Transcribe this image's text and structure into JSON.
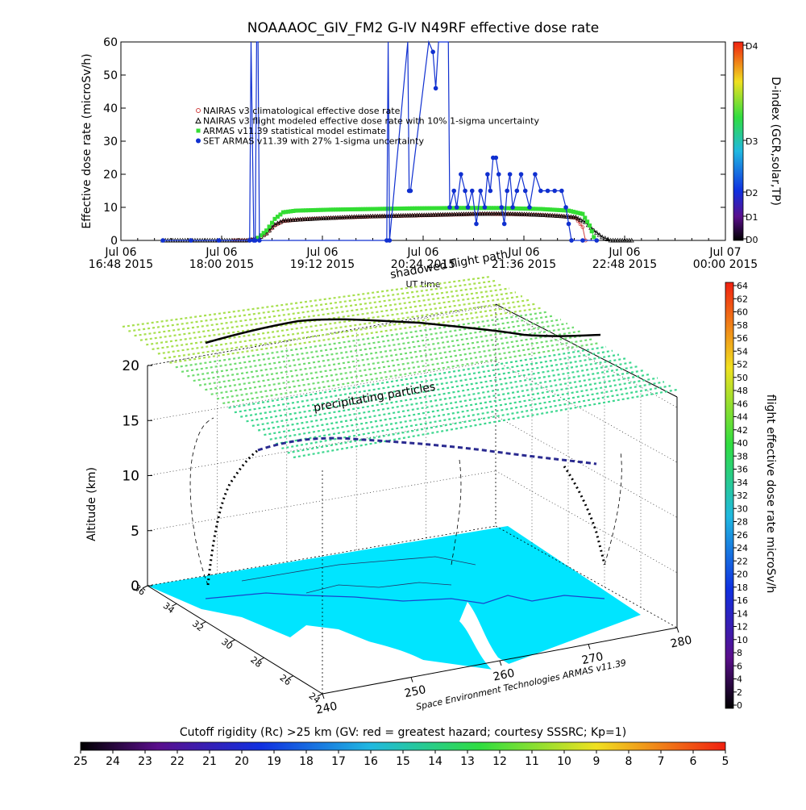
{
  "figure": {
    "title": "NOAAAOC_GIV_FM2 G-IV   N49RF  effective dose rate",
    "footer": "Space Environment Technologies ARMAS v11.39",
    "rc_caption": "Cutoff rigidity (Rc) >25 km (GV: red = greatest hazard; courtesy SSSRC; Kp=1)"
  },
  "chart_data": [
    {
      "type": "scatter",
      "name": "effective-dose-timeseries",
      "xlabel": "UT time",
      "ylabel": "Effective dose rate (microSv/h)",
      "ylim": [
        0,
        60
      ],
      "yticks": [
        0,
        10,
        20,
        30,
        40,
        50,
        60
      ],
      "xticks": [
        {
          "t": 0,
          "l1": "Jul 06",
          "l2": "16:48 2015"
        },
        {
          "t": 72,
          "l1": "Jul 06",
          "l2": "18:00 2015"
        },
        {
          "t": 144,
          "l1": "Jul 06",
          "l2": "19:12 2015"
        },
        {
          "t": 216,
          "l1": "Jul 06",
          "l2": "20:24 2015"
        },
        {
          "t": 288,
          "l1": "Jul 06",
          "l2": "21:36 2015"
        },
        {
          "t": 360,
          "l1": "Jul 06",
          "l2": "22:48 2015"
        },
        {
          "t": 432,
          "l1": "Jul 07",
          "l2": "00:00 2015"
        }
      ],
      "legend": [
        {
          "label": "NAIRAS v3 climatological effective dose rate",
          "color": "#d04040",
          "marker": "circle"
        },
        {
          "label": "NAIRAS v3 flight modeled effective dose rate with 10% 1-sigma uncertainty",
          "color": "#000000",
          "marker": "triangle"
        },
        {
          "label": "ARMAS v11.39 statistical model estimate",
          "color": "#33dd33",
          "marker": "square"
        },
        {
          "label": "SET ARMAS v11.39 with 27% 1-sigma uncertainty",
          "color": "#1030d0",
          "marker": "dot"
        }
      ],
      "series": [
        {
          "name": "NAIRAS v3 climatological effective dose rate",
          "color": "#d04040",
          "points": [
            [
              80,
              0
            ],
            [
              90,
              0
            ],
            [
              98,
              0.5
            ],
            [
              104,
              2
            ],
            [
              110,
              4.5
            ],
            [
              116,
              5.8
            ],
            [
              125,
              6.2
            ],
            [
              140,
              6.6
            ],
            [
              160,
              6.9
            ],
            [
              180,
              7.2
            ],
            [
              200,
              7.4
            ],
            [
              220,
              7.6
            ],
            [
              240,
              7.8
            ],
            [
              260,
              8.0
            ],
            [
              280,
              7.9
            ],
            [
              300,
              7.7
            ],
            [
              315,
              7.3
            ],
            [
              325,
              6.8
            ],
            [
              330,
              4
            ],
            [
              332,
              0
            ]
          ]
        },
        {
          "name": "NAIRAS v3 flight modeled effective dose rate with 10% 1-sigma uncertainty",
          "color": "#000000",
          "points": [
            [
              30,
              0
            ],
            [
              60,
              0
            ],
            [
              90,
              0
            ],
            [
              98,
              0.6
            ],
            [
              104,
              2.2
            ],
            [
              110,
              4.8
            ],
            [
              116,
              6.0
            ],
            [
              130,
              6.4
            ],
            [
              150,
              6.8
            ],
            [
              170,
              7.2
            ],
            [
              190,
              7.4
            ],
            [
              210,
              7.6
            ],
            [
              230,
              7.8
            ],
            [
              250,
              8.0
            ],
            [
              270,
              8.1
            ],
            [
              290,
              7.9
            ],
            [
              310,
              7.5
            ],
            [
              325,
              7.0
            ],
            [
              332,
              5.5
            ],
            [
              338,
              3
            ],
            [
              344,
              1
            ],
            [
              350,
              0
            ],
            [
              365,
              0
            ]
          ]
        },
        {
          "name": "ARMAS v11.39 statistical model estimate",
          "color": "#33dd33",
          "points": [
            [
              98,
              0.8
            ],
            [
              104,
              3
            ],
            [
              110,
              6.5
            ],
            [
              116,
              8.5
            ],
            [
              125,
              9.0
            ],
            [
              150,
              9.3
            ],
            [
              180,
              9.5
            ],
            [
              210,
              9.7
            ],
            [
              240,
              9.8
            ],
            [
              270,
              9.8
            ],
            [
              300,
              9.5
            ],
            [
              320,
              9.0
            ],
            [
              330,
              8.0
            ],
            [
              335,
              4.5
            ],
            [
              338,
              1
            ]
          ]
        },
        {
          "name": "SET ARMAS v11.39 with 27% 1-sigma uncertainty",
          "color": "#1030d0",
          "points": [
            [
              30,
              0
            ],
            [
              50,
              0
            ],
            [
              70,
              0
            ],
            [
              92,
              0
            ],
            [
              93,
              60
            ],
            [
              95,
              0
            ],
            [
              96,
              0
            ],
            [
              97,
              60
            ],
            [
              98,
              60
            ],
            [
              99,
              0
            ],
            [
              190,
              0
            ],
            [
              191,
              60
            ],
            [
              192,
              0
            ],
            [
              205,
              60
            ],
            [
              206,
              15
            ],
            [
              207,
              15
            ],
            [
              220,
              60
            ],
            [
              223,
              57
            ],
            [
              225,
              46
            ],
            [
              227,
              60
            ],
            [
              234,
              60
            ],
            [
              235,
              10
            ],
            [
              238,
              15
            ],
            [
              240,
              10
            ],
            [
              243,
              20
            ],
            [
              246,
              15
            ],
            [
              248,
              10
            ],
            [
              251,
              15
            ],
            [
              254,
              5
            ],
            [
              257,
              15
            ],
            [
              260,
              10
            ],
            [
              262,
              20
            ],
            [
              264,
              15
            ],
            [
              266,
              25
            ],
            [
              268,
              25
            ],
            [
              270,
              20
            ],
            [
              272,
              10
            ],
            [
              274,
              5
            ],
            [
              276,
              15
            ],
            [
              278,
              20
            ],
            [
              280,
              10
            ],
            [
              283,
              15
            ],
            [
              286,
              20
            ],
            [
              289,
              15
            ],
            [
              292,
              10
            ],
            [
              296,
              20
            ],
            [
              300,
              15
            ],
            [
              305,
              15
            ],
            [
              310,
              15
            ],
            [
              315,
              15
            ],
            [
              318,
              10
            ],
            [
              320,
              5
            ],
            [
              322,
              0
            ],
            [
              330,
              0
            ],
            [
              340,
              0
            ]
          ]
        }
      ]
    },
    {
      "type": "scatter",
      "name": "flight-3d-track",
      "ylabel": "Altitude (km)",
      "zticks": [
        0,
        5,
        10,
        15,
        20
      ],
      "lat_ticks": [
        "36",
        "34",
        "32",
        "30",
        "28",
        "26",
        "24"
      ],
      "lon_ticks": [
        "240",
        "250",
        "260",
        "270",
        "280"
      ],
      "annotations": [
        "shadowed flight path",
        "precipitating particles"
      ],
      "track_color_scale": {
        "min": 0,
        "max": 64,
        "unit": "microSv/h"
      }
    }
  ],
  "colorbars": {
    "dindex": {
      "label": "D-index (GCR,solar,TP)",
      "ticks": [
        "D4",
        "D3",
        "D2",
        "D1",
        "D0"
      ]
    },
    "dose": {
      "label": "flight effective dose rate microSv/h",
      "ticks": [
        "64",
        "62",
        "60",
        "58",
        "56",
        "54",
        "52",
        "50",
        "48",
        "46",
        "44",
        "42",
        "40",
        "38",
        "36",
        "34",
        "32",
        "30",
        "28",
        "26",
        "24",
        "22",
        "20",
        "18",
        "16",
        "14",
        "12",
        "10",
        "8",
        "6",
        "4",
        "2",
        "0"
      ]
    },
    "rc": {
      "ticks": [
        "25",
        "24",
        "23",
        "22",
        "21",
        "20",
        "19",
        "18",
        "17",
        "16",
        "15",
        "14",
        "13",
        "12",
        "11",
        "10",
        "9",
        "8",
        "7",
        "6",
        "5"
      ]
    }
  }
}
